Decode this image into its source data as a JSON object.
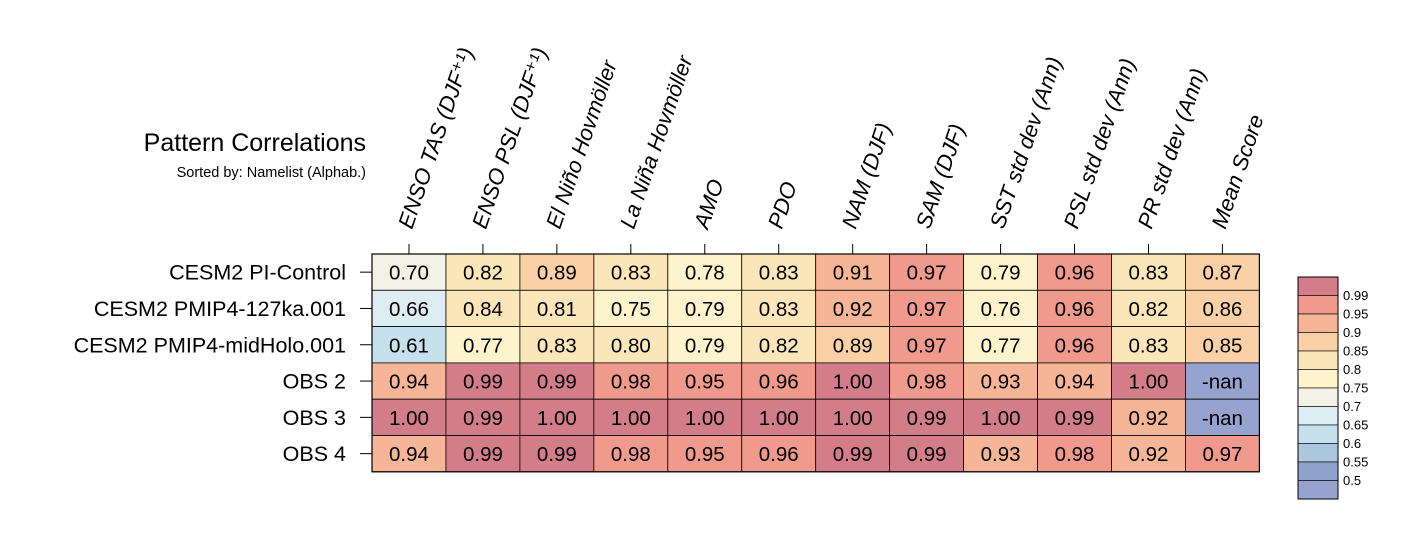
{
  "title": "Pattern Correlations",
  "subtitle": "Sorted by: Namelist (Alphab.)",
  "chart_data": {
    "type": "heatmap",
    "columns": [
      "ENSO TAS (DJF⁺¹)",
      "ENSO PSL (DJF⁺¹)",
      "El Niño Hovmöller",
      "La Niña Hovmöller",
      "AMO",
      "PDO",
      "NAM (DJF)",
      "SAM (DJF)",
      "SST std dev (Ann)",
      "PSL std dev (Ann)",
      "PR std dev (Ann)",
      "Mean Score"
    ],
    "rows": [
      "CESM2 PI-Control",
      "CESM2 PMIP4-127ka.001",
      "CESM2 PMIP4-midHolo.001",
      "OBS 2",
      "OBS 3",
      "OBS 4"
    ],
    "values": [
      [
        0.7,
        0.82,
        0.89,
        0.83,
        0.78,
        0.83,
        0.91,
        0.97,
        0.79,
        0.96,
        0.83,
        0.87
      ],
      [
        0.66,
        0.84,
        0.81,
        0.75,
        0.79,
        0.83,
        0.92,
        0.97,
        0.76,
        0.96,
        0.82,
        0.86
      ],
      [
        0.61,
        0.77,
        0.83,
        0.8,
        0.79,
        0.82,
        0.89,
        0.97,
        0.77,
        0.96,
        0.83,
        0.85
      ],
      [
        0.94,
        0.99,
        0.99,
        0.98,
        0.95,
        0.96,
        1.0,
        0.98,
        0.93,
        0.94,
        1.0,
        null
      ],
      [
        1.0,
        0.99,
        1.0,
        1.0,
        1.0,
        1.0,
        1.0,
        0.99,
        1.0,
        0.99,
        0.92,
        null
      ],
      [
        0.94,
        0.99,
        0.99,
        0.98,
        0.95,
        0.96,
        0.99,
        0.99,
        0.93,
        0.98,
        0.92,
        0.97
      ]
    ],
    "cell_labels": [
      [
        "0.70",
        "0.82",
        "0.89",
        "0.83",
        "0.78",
        "0.83",
        "0.91",
        "0.97",
        "0.79",
        "0.96",
        "0.83",
        "0.87"
      ],
      [
        "0.66",
        "0.84",
        "0.81",
        "0.75",
        "0.79",
        "0.83",
        "0.92",
        "0.97",
        "0.76",
        "0.96",
        "0.82",
        "0.86"
      ],
      [
        "0.61",
        "0.77",
        "0.83",
        "0.80",
        "0.79",
        "0.82",
        "0.89",
        "0.97",
        "0.77",
        "0.96",
        "0.83",
        "0.85"
      ],
      [
        "0.94",
        "0.99",
        "0.99",
        "0.98",
        "0.95",
        "0.96",
        "1.00",
        "0.98",
        "0.93",
        "0.94",
        "1.00",
        "-nan"
      ],
      [
        "1.00",
        "0.99",
        "1.00",
        "1.00",
        "1.00",
        "1.00",
        "1.00",
        "0.99",
        "1.00",
        "0.99",
        "0.92",
        "-nan"
      ],
      [
        "0.94",
        "0.99",
        "0.99",
        "0.98",
        "0.95",
        "0.96",
        "0.99",
        "0.99",
        "0.93",
        "0.98",
        "0.92",
        "0.97"
      ]
    ],
    "colorbar": {
      "levels": [
        "0.99",
        "0.95",
        "0.9",
        "0.85",
        "0.8",
        "0.75",
        "0.7",
        "0.65",
        "0.6",
        "0.55",
        "0.5"
      ],
      "colors_top_to_bottom": [
        "#d37d8b",
        "#ef9a8c",
        "#f6b596",
        "#fad1a7",
        "#fbe6ba",
        "#fdf3cc",
        "#f2f3e6",
        "#deedf3",
        "#c6e0ec",
        "#aac7de",
        "#8fa2cc",
        "#96a3cf"
      ],
      "nan_color": "#96a3cf",
      "placement": "right"
    }
  }
}
